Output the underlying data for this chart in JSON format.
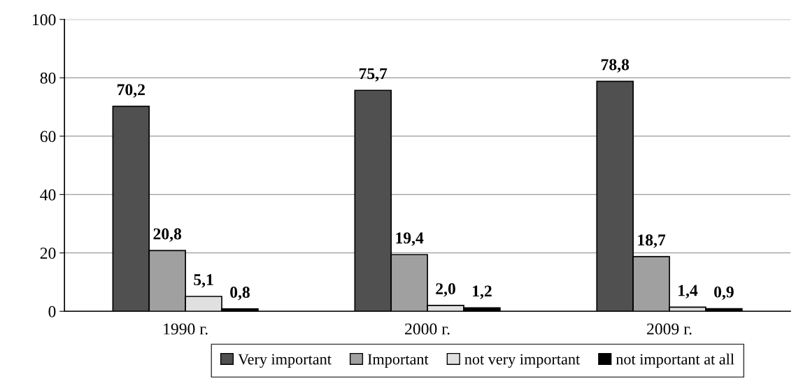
{
  "chart_data": {
    "type": "bar",
    "categories": [
      "1990 г.",
      "2000 г.",
      "2009 г."
    ],
    "series": [
      {
        "name": "Very important",
        "color": "#505050",
        "values": [
          70.2,
          75.7,
          78.8
        ],
        "value_labels": [
          "70,2",
          "75,7",
          "78,8"
        ]
      },
      {
        "name": "Important",
        "color": "#a0a0a0",
        "values": [
          20.8,
          19.4,
          18.7
        ],
        "value_labels": [
          "20,8",
          "19,4",
          "18,7"
        ]
      },
      {
        "name": "not very important",
        "color": "#e0e0e0",
        "values": [
          5.1,
          2.0,
          1.4
        ],
        "value_labels": [
          "5,1",
          "2,0",
          "1,4"
        ]
      },
      {
        "name": "not important at all",
        "color": "#000000",
        "values": [
          0.8,
          1.2,
          0.9
        ],
        "value_labels": [
          "0,8",
          "1,2",
          "0,9"
        ]
      }
    ],
    "ylim": [
      0,
      100
    ],
    "yticks": [
      0,
      20,
      40,
      60,
      80,
      100
    ],
    "grid": "y",
    "legend": "bottom"
  }
}
